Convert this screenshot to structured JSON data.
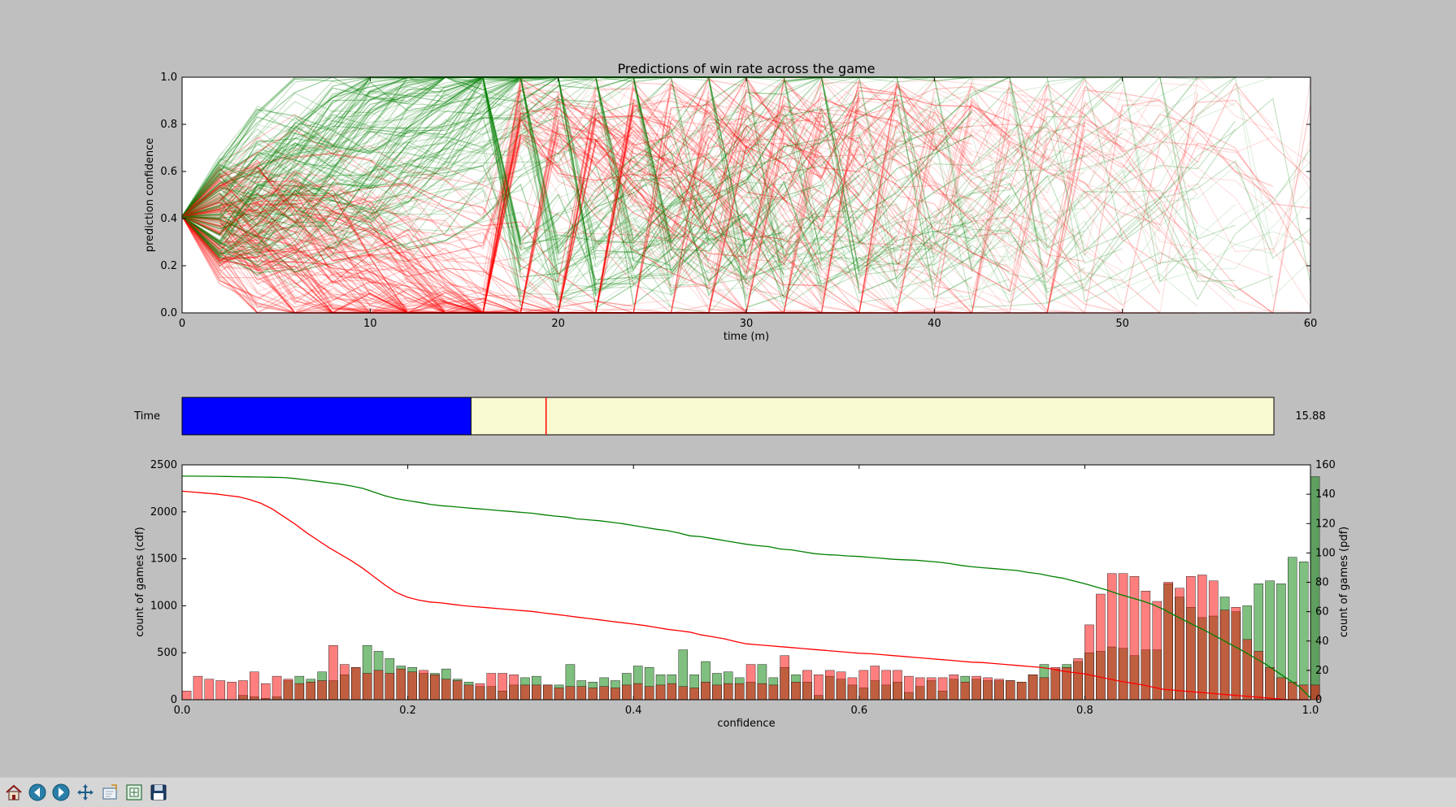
{
  "colors": {
    "figure_bg": "#bfbfbf",
    "axes_bg": "#ffffff",
    "win": "#008000",
    "loss": "#ff0000",
    "slider_fill": "#0000ff",
    "slider_track": "#fafad2",
    "slider_marker": "#ff0000"
  },
  "top_chart": {
    "title": "Predictions of win rate across the game",
    "xlabel": "time (m)",
    "ylabel": "prediction confidence",
    "xlim": [
      0,
      60
    ],
    "ylim": [
      0,
      1
    ],
    "xticks": [
      "0",
      "10",
      "20",
      "30",
      "40",
      "50",
      "60"
    ],
    "yticks": [
      "0.0",
      "0.2",
      "0.4",
      "0.6",
      "0.8",
      "1.0"
    ]
  },
  "slider": {
    "label": "Time",
    "value_text": "15.88",
    "value": 15.88,
    "min": 0,
    "max": 60,
    "marker_value": 20
  },
  "chart_data": [
    {
      "type": "line",
      "title": "Predictions of win rate across the game",
      "xlabel": "time (m)",
      "ylabel": "prediction confidence",
      "xlim": [
        0,
        60
      ],
      "ylim": [
        0,
        1
      ],
      "start_value": 0.41,
      "time_step_minutes": 2,
      "series": [
        {
          "color": "#008000",
          "description": "winning games trajectories"
        },
        {
          "color": "#ff0000",
          "description": "losing games trajectories"
        }
      ]
    },
    {
      "type": "bar",
      "xlabel": "confidence",
      "ylabel_left": "count of games (cdf)",
      "ylabel_right": "count of games (pdf)",
      "xlim": [
        0,
        1
      ],
      "ylim_left": [
        0,
        2500
      ],
      "ylim_right": [
        0,
        160
      ],
      "xticks": [
        "0.0",
        "0.2",
        "0.4",
        "0.6",
        "0.8",
        "1.0"
      ],
      "yticks_left": [
        "0",
        "500",
        "1000",
        "1500",
        "2000",
        "2500"
      ],
      "yticks_right": [
        "0",
        "20",
        "40",
        "60",
        "80",
        "100",
        "120",
        "140",
        "160"
      ],
      "bin_width": 0.01,
      "pdf_win": [
        0,
        0,
        0,
        0,
        0,
        3,
        2,
        1,
        2,
        13,
        16,
        14,
        19,
        13,
        17,
        22,
        37,
        33,
        28,
        23,
        22,
        18,
        18,
        21,
        14,
        12,
        9,
        9,
        6,
        10,
        15,
        16,
        10,
        10,
        24,
        13,
        12,
        15,
        13,
        18,
        23,
        22,
        17,
        17,
        34,
        17,
        26,
        18,
        19,
        15,
        12,
        24,
        15,
        22,
        17,
        12,
        3,
        16,
        14,
        10,
        8,
        13,
        10,
        12,
        5,
        9,
        13,
        6,
        14,
        16,
        14,
        13,
        13,
        13,
        12,
        17,
        24,
        21,
        24,
        26,
        32,
        33,
        36,
        35,
        30,
        34,
        34,
        79,
        70,
        63,
        56,
        57,
        70,
        60,
        64,
        79,
        81,
        79,
        97,
        94,
        152
      ],
      "pdf_loss": [
        6,
        16,
        14,
        13,
        12,
        13,
        19,
        11,
        16,
        14,
        11,
        12,
        13,
        37,
        24,
        22,
        18,
        20,
        18,
        21,
        19,
        20,
        17,
        14,
        13,
        10,
        11,
        18,
        18,
        17,
        10,
        10,
        10,
        8,
        9,
        9,
        8,
        9,
        8,
        10,
        11,
        9,
        10,
        11,
        9,
        8,
        12,
        10,
        11,
        11,
        24,
        11,
        10,
        30,
        12,
        20,
        17,
        20,
        19,
        15,
        20,
        23,
        20,
        20,
        16,
        15,
        15,
        15,
        17,
        12,
        16,
        15,
        14,
        13,
        12,
        17,
        15,
        22,
        22,
        28,
        51,
        72,
        86,
        86,
        84,
        74,
        67,
        80,
        76,
        84,
        85,
        81,
        61,
        63,
        41,
        33,
        22,
        15,
        12,
        10,
        10
      ],
      "cdf_win": [
        2380,
        2380,
        2379,
        2378,
        2376,
        2374,
        2372,
        2370,
        2368,
        2365,
        2355,
        2340,
        2325,
        2310,
        2295,
        2275,
        2250,
        2210,
        2170,
        2140,
        2120,
        2100,
        2080,
        2065,
        2055,
        2045,
        2035,
        2025,
        2015,
        2005,
        1995,
        1985,
        1970,
        1955,
        1945,
        1925,
        1915,
        1905,
        1890,
        1875,
        1855,
        1835,
        1815,
        1800,
        1775,
        1745,
        1735,
        1715,
        1695,
        1675,
        1655,
        1640,
        1630,
        1605,
        1595,
        1575,
        1555,
        1545,
        1540,
        1530,
        1525,
        1515,
        1505,
        1495,
        1490,
        1485,
        1475,
        1465,
        1450,
        1430,
        1415,
        1405,
        1395,
        1385,
        1375,
        1355,
        1340,
        1315,
        1295,
        1265,
        1235,
        1200,
        1165,
        1125,
        1090,
        1055,
        1015,
        960,
        895,
        835,
        775,
        715,
        650,
        585,
        520,
        450,
        380,
        300,
        220,
        140,
        20
      ],
      "cdf_loss": [
        2220,
        2210,
        2200,
        2190,
        2175,
        2160,
        2130,
        2090,
        2030,
        1950,
        1870,
        1780,
        1700,
        1620,
        1550,
        1480,
        1400,
        1310,
        1220,
        1140,
        1090,
        1060,
        1040,
        1030,
        1015,
        1000,
        990,
        980,
        970,
        960,
        950,
        940,
        925,
        910,
        895,
        880,
        865,
        850,
        835,
        820,
        805,
        790,
        770,
        750,
        735,
        720,
        690,
        670,
        650,
        620,
        595,
        585,
        575,
        565,
        555,
        545,
        535,
        525,
        515,
        505,
        495,
        490,
        480,
        470,
        460,
        450,
        440,
        430,
        420,
        410,
        400,
        395,
        385,
        375,
        365,
        355,
        345,
        330,
        305,
        290,
        275,
        250,
        225,
        200,
        180,
        160,
        135,
        110,
        100,
        90,
        80,
        70,
        60,
        50,
        40,
        30,
        20,
        10,
        0,
        0,
        0
      ]
    }
  ],
  "toolbar": {
    "buttons": [
      {
        "name": "home-button",
        "icon": "home-icon"
      },
      {
        "name": "back-button",
        "icon": "arrow-left-icon"
      },
      {
        "name": "forward-button",
        "icon": "arrow-right-icon"
      },
      {
        "name": "pan-button",
        "icon": "move-icon"
      },
      {
        "name": "zoom-button",
        "icon": "zoom-rect-icon"
      },
      {
        "name": "subplots-button",
        "icon": "subplots-icon"
      },
      {
        "name": "save-button",
        "icon": "floppy-disk-icon"
      }
    ]
  }
}
